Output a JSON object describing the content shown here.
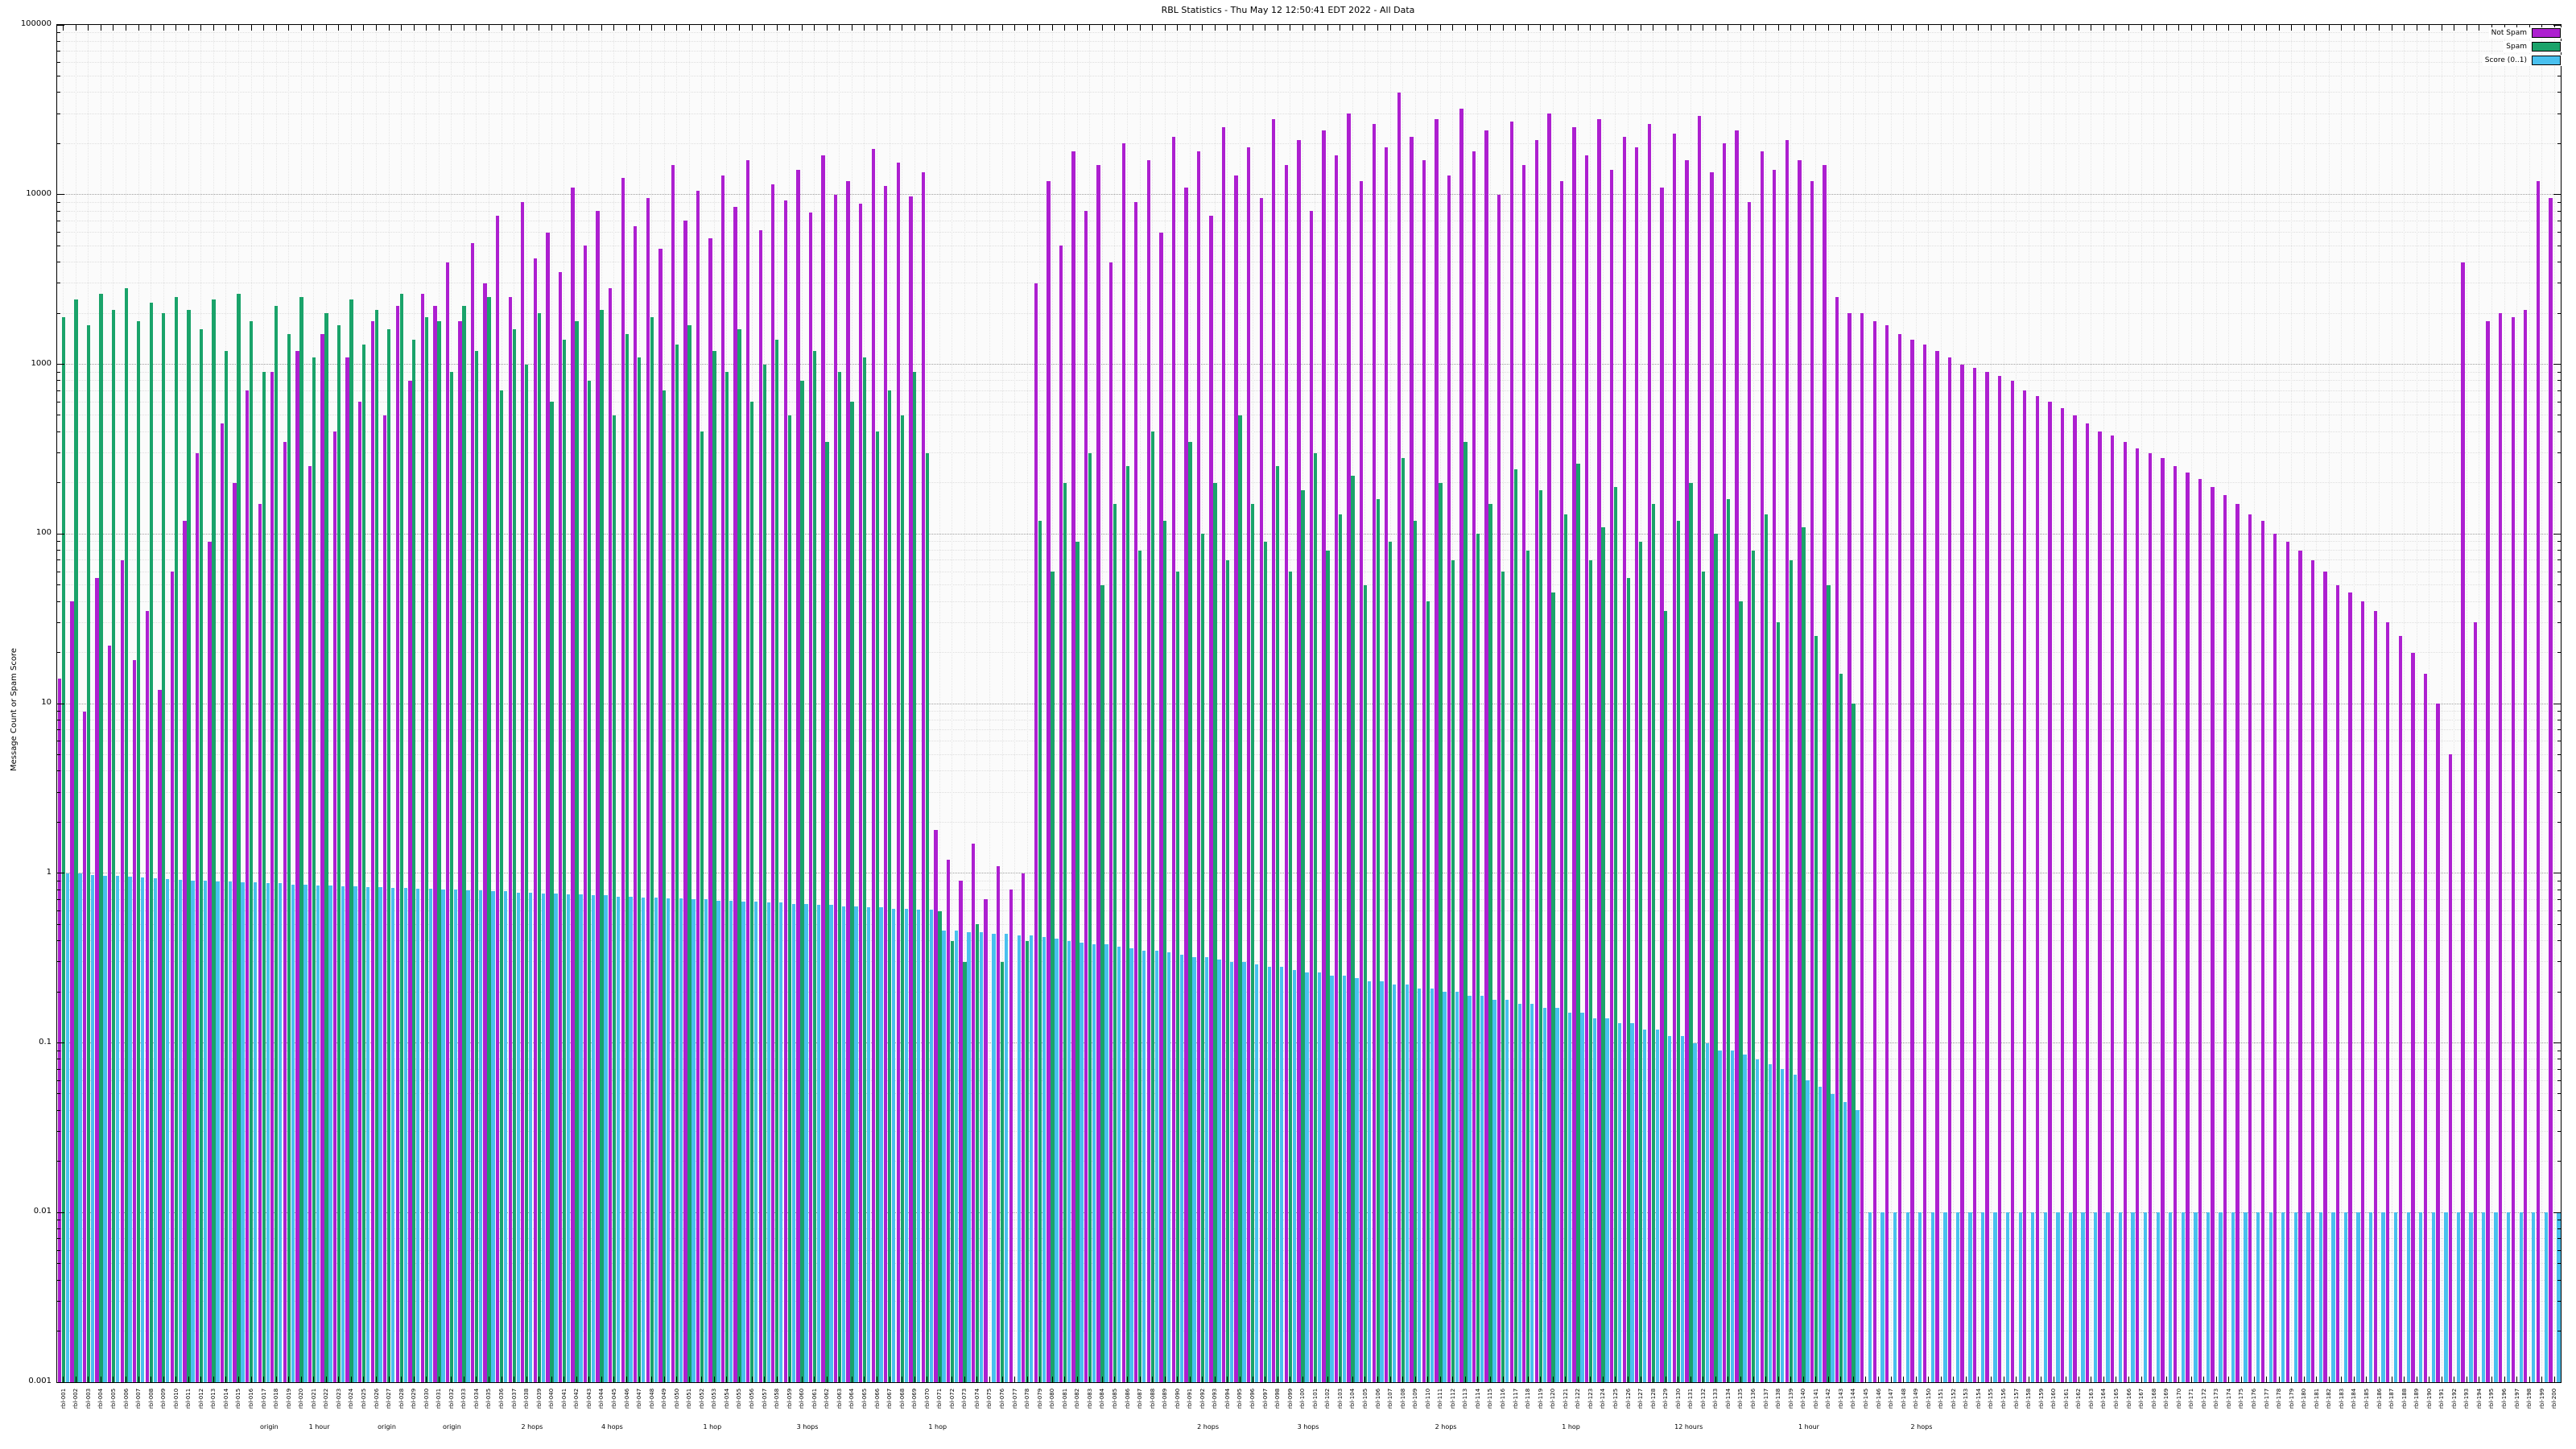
{
  "chart_data": {
    "type": "bar",
    "title": "RBL Statistics - Thu May 12 12:50:41 EDT 2022 - All Data",
    "xlabel": "",
    "ylabel": "Message Count or Spam Score",
    "yscale": "log",
    "ylim": [
      0.001,
      100000
    ],
    "y_ticks": [
      "100000",
      "10000",
      "1000",
      "100",
      "10",
      "1",
      "0.1",
      "0.01",
      "0.001"
    ],
    "grid": true,
    "legend_position": "top-right",
    "legend": [
      {
        "label": "Not Spam",
        "color": "#ad1fd0"
      },
      {
        "label": "Spam",
        "color": "#1aa36a"
      },
      {
        "label": "Score (0..1)",
        "color": "#49c0ee"
      }
    ],
    "categories": [
      "rbl-001",
      "rbl-002",
      "rbl-003",
      "rbl-004",
      "rbl-005",
      "rbl-006",
      "rbl-007",
      "rbl-008",
      "rbl-009",
      "rbl-010",
      "rbl-011",
      "rbl-012",
      "rbl-013",
      "rbl-014",
      "rbl-015",
      "rbl-016",
      "rbl-017",
      "rbl-018",
      "rbl-019",
      "rbl-020",
      "rbl-021",
      "rbl-022",
      "rbl-023",
      "rbl-024",
      "rbl-025",
      "rbl-026",
      "rbl-027",
      "rbl-028",
      "rbl-029",
      "rbl-030",
      "rbl-031",
      "rbl-032",
      "rbl-033",
      "rbl-034",
      "rbl-035",
      "rbl-036",
      "rbl-037",
      "rbl-038",
      "rbl-039",
      "rbl-040",
      "rbl-041",
      "rbl-042",
      "rbl-043",
      "rbl-044",
      "rbl-045",
      "rbl-046",
      "rbl-047",
      "rbl-048",
      "rbl-049",
      "rbl-050",
      "rbl-051",
      "rbl-052",
      "rbl-053",
      "rbl-054",
      "rbl-055",
      "rbl-056",
      "rbl-057",
      "rbl-058",
      "rbl-059",
      "rbl-060",
      "rbl-061",
      "rbl-062",
      "rbl-063",
      "rbl-064",
      "rbl-065",
      "rbl-066",
      "rbl-067",
      "rbl-068",
      "rbl-069",
      "rbl-070",
      "rbl-071",
      "rbl-072",
      "rbl-073",
      "rbl-074",
      "rbl-075",
      "rbl-076",
      "rbl-077",
      "rbl-078",
      "rbl-079",
      "rbl-080",
      "rbl-081",
      "rbl-082",
      "rbl-083",
      "rbl-084",
      "rbl-085",
      "rbl-086",
      "rbl-087",
      "rbl-088",
      "rbl-089",
      "rbl-090",
      "rbl-091",
      "rbl-092",
      "rbl-093",
      "rbl-094",
      "rbl-095",
      "rbl-096",
      "rbl-097",
      "rbl-098",
      "rbl-099",
      "rbl-100",
      "rbl-101",
      "rbl-102",
      "rbl-103",
      "rbl-104",
      "rbl-105",
      "rbl-106",
      "rbl-107",
      "rbl-108",
      "rbl-109",
      "rbl-110",
      "rbl-111",
      "rbl-112",
      "rbl-113",
      "rbl-114",
      "rbl-115",
      "rbl-116",
      "rbl-117",
      "rbl-118",
      "rbl-119",
      "rbl-120",
      "rbl-121",
      "rbl-122",
      "rbl-123",
      "rbl-124",
      "rbl-125",
      "rbl-126",
      "rbl-127",
      "rbl-128",
      "rbl-129",
      "rbl-130",
      "rbl-131",
      "rbl-132",
      "rbl-133",
      "rbl-134",
      "rbl-135",
      "rbl-136",
      "rbl-137",
      "rbl-138",
      "rbl-139",
      "rbl-140",
      "rbl-141",
      "rbl-142",
      "rbl-143",
      "rbl-144",
      "rbl-145",
      "rbl-146",
      "rbl-147",
      "rbl-148",
      "rbl-149",
      "rbl-150",
      "rbl-151",
      "rbl-152",
      "rbl-153",
      "rbl-154",
      "rbl-155",
      "rbl-156",
      "rbl-157",
      "rbl-158",
      "rbl-159",
      "rbl-160",
      "rbl-161",
      "rbl-162",
      "rbl-163",
      "rbl-164",
      "rbl-165",
      "rbl-166",
      "rbl-167",
      "rbl-168",
      "rbl-169",
      "rbl-170",
      "rbl-171",
      "rbl-172",
      "rbl-173",
      "rbl-174",
      "rbl-175",
      "rbl-176",
      "rbl-177",
      "rbl-178",
      "rbl-179",
      "rbl-180",
      "rbl-181",
      "rbl-182",
      "rbl-183",
      "rbl-184",
      "rbl-185",
      "rbl-186",
      "rbl-187",
      "rbl-188",
      "rbl-189",
      "rbl-190",
      "rbl-191",
      "rbl-192",
      "rbl-193",
      "rbl-194",
      "rbl-195",
      "rbl-196",
      "rbl-197",
      "rbl-198",
      "rbl-199",
      "rbl-200"
    ],
    "series": [
      {
        "name": "Not Spam",
        "color": "#ad1fd0",
        "values": [
          14,
          40,
          9,
          55,
          22,
          70,
          18,
          35,
          12,
          60,
          120,
          300,
          90,
          450,
          200,
          700,
          150,
          900,
          350,
          1200,
          250,
          1500,
          400,
          1100,
          600,
          1800,
          500,
          2200,
          800,
          2600,
          2200,
          4000,
          1800,
          5200,
          3000,
          7500,
          2500,
          9000,
          4200,
          6000,
          3500,
          11000,
          5000,
          8000,
          2800,
          12500,
          6500,
          9500,
          4800,
          15000,
          7000,
          10500,
          5500,
          13000,
          8500,
          16000,
          6200,
          11500,
          9200,
          14000,
          7800,
          17000,
          10000,
          12000,
          8800,
          18500,
          11200,
          15500,
          9800,
          13500,
          1.8,
          1.2,
          0.9,
          1.5,
          0.7,
          1.1,
          0.8,
          1,
          3000,
          12000,
          5000,
          18000,
          8000,
          15000,
          4000,
          20000,
          9000,
          16000,
          6000,
          22000,
          11000,
          18000,
          7500,
          25000,
          13000,
          19000,
          9500,
          28000,
          15000,
          21000,
          8000,
          24000,
          17000,
          30000,
          12000,
          26000,
          19000,
          40000,
          22000,
          16000,
          28000,
          13000,
          32000,
          18000,
          24000,
          10000,
          27000,
          15000,
          21000,
          30000,
          12000,
          25000,
          17000,
          28000,
          14000,
          22000,
          19000,
          26000,
          11000,
          23000,
          16000,
          29000,
          13500,
          20000,
          24000,
          9000,
          18000,
          14000,
          21000,
          16000,
          12000,
          15000,
          2500,
          2000,
          2000,
          1800,
          1700,
          1500,
          1400,
          1300,
          1200,
          1100,
          1000,
          950,
          900,
          850,
          800,
          700,
          650,
          600,
          550,
          500,
          450,
          400,
          380,
          350,
          320,
          300,
          280,
          250,
          230,
          210,
          190,
          170,
          150,
          130,
          120,
          100,
          90,
          80,
          70,
          60,
          50,
          45,
          40,
          35,
          30,
          25,
          20,
          15,
          10,
          5,
          4000,
          30,
          1800,
          2000,
          1900,
          2100,
          12000,
          9500
        ]
      },
      {
        "name": "Spam",
        "color": "#1aa36a",
        "values": [
          1900,
          2400,
          1700,
          2600,
          2100,
          2800,
          1800,
          2300,
          2000,
          2500,
          2100,
          1600,
          2400,
          1200,
          2600,
          1800,
          900,
          2200,
          1500,
          2500,
          1100,
          2000,
          1700,
          2400,
          1300,
          2100,
          1600,
          2600,
          1400,
          1900,
          1800,
          900,
          2200,
          1200,
          2500,
          700,
          1600,
          1000,
          2000,
          600,
          1400,
          1800,
          800,
          2100,
          500,
          1500,
          1100,
          1900,
          700,
          1300,
          1700,
          400,
          1200,
          900,
          1600,
          600,
          1000,
          1400,
          500,
          800,
          1200,
          350,
          900,
          600,
          1100,
          400,
          700,
          500,
          900,
          300,
          0.6,
          0.4,
          0.3,
          0.5,
          0,
          0.3,
          0,
          0.4,
          120,
          60,
          200,
          90,
          300,
          50,
          150,
          250,
          80,
          400,
          120,
          60,
          350,
          100,
          200,
          70,
          500,
          150,
          90,
          250,
          60,
          180,
          300,
          80,
          130,
          220,
          50,
          160,
          90,
          280,
          120,
          40,
          200,
          70,
          350,
          100,
          150,
          60,
          240,
          80,
          180,
          45,
          130,
          260,
          70,
          110,
          190,
          55,
          90,
          150,
          35,
          120,
          200,
          60,
          100,
          160,
          40,
          80,
          130,
          30,
          70,
          110,
          25,
          50,
          15,
          10,
          0,
          0,
          0,
          0,
          0,
          0,
          0,
          0,
          0,
          0,
          0,
          0,
          0,
          0,
          0,
          0,
          0,
          0,
          0,
          0,
          0,
          0,
          0,
          0,
          0,
          0,
          0,
          0,
          0,
          0,
          0,
          0,
          0,
          0,
          0,
          0,
          0,
          0,
          0,
          0,
          0,
          0,
          0,
          0,
          0,
          0,
          0,
          0,
          0,
          0,
          0,
          0,
          0,
          0,
          0,
          0
        ]
      },
      {
        "name": "Score (0..1)",
        "color": "#49c0ee",
        "values": [
          1,
          1,
          0.98,
          0.97,
          0.96,
          0.95,
          0.94,
          0.93,
          0.92,
          0.91,
          0.9,
          0.9,
          0.89,
          0.89,
          0.88,
          0.88,
          0.87,
          0.87,
          0.86,
          0.86,
          0.85,
          0.85,
          0.84,
          0.84,
          0.83,
          0.83,
          0.82,
          0.82,
          0.81,
          0.81,
          0.8,
          0.8,
          0.79,
          0.79,
          0.78,
          0.78,
          0.77,
          0.77,
          0.76,
          0.76,
          0.75,
          0.75,
          0.74,
          0.74,
          0.73,
          0.73,
          0.72,
          0.72,
          0.71,
          0.71,
          0.7,
          0.7,
          0.69,
          0.69,
          0.68,
          0.68,
          0.67,
          0.67,
          0.66,
          0.66,
          0.65,
          0.65,
          0.64,
          0.64,
          0.63,
          0.63,
          0.62,
          0.62,
          0.61,
          0.61,
          0.46,
          0.46,
          0.45,
          0.45,
          0.44,
          0.44,
          0.43,
          0.43,
          0.42,
          0.41,
          0.4,
          0.39,
          0.38,
          0.38,
          0.37,
          0.36,
          0.35,
          0.35,
          0.34,
          0.33,
          0.32,
          0.32,
          0.31,
          0.3,
          0.3,
          0.29,
          0.28,
          0.28,
          0.27,
          0.26,
          0.26,
          0.25,
          0.25,
          0.24,
          0.23,
          0.23,
          0.22,
          0.22,
          0.21,
          0.21,
          0.2,
          0.2,
          0.19,
          0.19,
          0.18,
          0.18,
          0.17,
          0.17,
          0.16,
          0.16,
          0.15,
          0.15,
          0.14,
          0.14,
          0.13,
          0.13,
          0.12,
          0.12,
          0.11,
          0.11,
          0.1,
          0.1,
          0.09,
          0.09,
          0.085,
          0.08,
          0.075,
          0.07,
          0.065,
          0.06,
          0.055,
          0.05,
          0.045,
          0.04,
          0.01,
          0.01,
          0.01,
          0.01,
          0.01,
          0.01,
          0.01,
          0.01,
          0.01,
          0.01,
          0.01,
          0.01,
          0.01,
          0.01,
          0.01,
          0.01,
          0.01,
          0.01,
          0.01,
          0.01,
          0.01,
          0.01,
          0.01,
          0.01,
          0.01,
          0.01,
          0.01,
          0.01,
          0.01,
          0.01,
          0.01,
          0.01,
          0.01,
          0.01,
          0.01,
          0.01,
          0.01,
          0.01,
          0.01,
          0.01,
          0.01,
          0.01,
          0.01,
          0.01,
          0.01,
          0.01,
          0.01,
          0.01,
          0.01,
          0.01,
          0.01,
          0.01,
          0.01,
          0.01,
          0.01,
          0.01
        ]
      }
    ],
    "annotations": [
      {
        "label": "origin",
        "pos": 0.085
      },
      {
        "label": "1 hour",
        "pos": 0.105
      },
      {
        "label": "origin",
        "pos": 0.132
      },
      {
        "label": "origin",
        "pos": 0.158
      },
      {
        "label": "2 hops",
        "pos": 0.19
      },
      {
        "label": "4 hops",
        "pos": 0.222
      },
      {
        "label": "1 hop",
        "pos": 0.262
      },
      {
        "label": "3 hops",
        "pos": 0.3
      },
      {
        "label": "1 hop",
        "pos": 0.352
      },
      {
        "label": "2 hops",
        "pos": 0.46
      },
      {
        "label": "3 hops",
        "pos": 0.5
      },
      {
        "label": "2 hops",
        "pos": 0.555
      },
      {
        "label": "1 hop",
        "pos": 0.605
      },
      {
        "label": "12 hours",
        "pos": 0.652
      },
      {
        "label": "1 hour",
        "pos": 0.7
      },
      {
        "label": "2 hops",
        "pos": 0.745
      }
    ]
  }
}
